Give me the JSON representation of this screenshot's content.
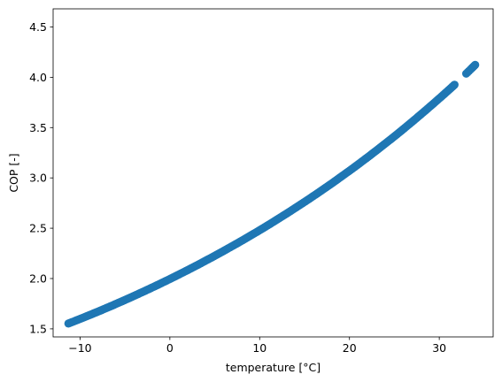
{
  "chart_data": {
    "type": "scatter",
    "title": "",
    "xlabel": "temperature [°C]",
    "ylabel": "COP [-]",
    "xlim": [
      -13.0,
      36.0
    ],
    "ylim": [
      1.42,
      4.68
    ],
    "xticks": [
      -10,
      0,
      10,
      20,
      30
    ],
    "yticks": [
      1.5,
      2.0,
      2.5,
      3.0,
      3.5,
      4.0,
      4.5
    ],
    "xtick_labels": [
      "−10",
      "0",
      "10",
      "20",
      "30"
    ],
    "ytick_labels": [
      "1.5",
      "2.0",
      "2.5",
      "3.0",
      "3.5",
      "4.0",
      "4.5"
    ],
    "grid": false,
    "marker_color": "#1f77b4",
    "series": [
      {
        "x": [
          -11.3,
          -10.8,
          -10.3,
          -9.8,
          -9.3,
          -8.8,
          -8.3,
          -7.8,
          -7.3,
          -6.8,
          -6.3,
          -5.8,
          -5.3,
          -4.8,
          -4.3,
          -3.8,
          -3.3,
          -2.8,
          -2.3,
          -1.8,
          -1.3,
          -0.8,
          -0.3,
          0.2,
          0.7,
          1.2,
          1.7,
          2.2,
          2.7,
          3.2,
          3.7,
          4.2,
          4.7,
          5.2,
          5.7,
          6.2,
          6.7,
          7.2,
          7.7,
          8.2,
          8.7,
          9.2,
          9.7,
          10.2,
          10.7,
          11.2,
          11.7,
          12.2,
          12.7,
          13.2,
          13.7,
          14.2,
          14.7,
          15.2,
          15.7,
          16.2,
          16.7,
          17.2,
          17.7,
          18.2,
          18.7,
          19.2,
          19.7,
          20.2,
          20.7,
          21.2,
          21.7,
          22.2,
          22.7,
          23.2,
          23.7,
          24.2,
          24.7,
          25.2,
          25.7,
          26.2,
          26.7,
          27.2,
          27.7,
          28.2,
          28.7,
          29.2,
          29.7,
          30.2,
          30.6,
          31.0,
          31.4,
          31.7,
          33.0,
          33.6,
          34.0
        ],
        "y": [
          1.553,
          1.57,
          1.588,
          1.606,
          1.624,
          1.642,
          1.661,
          1.679,
          1.698,
          1.717,
          1.736,
          1.756,
          1.775,
          1.795,
          1.815,
          1.835,
          1.856,
          1.876,
          1.897,
          1.918,
          1.939,
          1.961,
          1.982,
          2.004,
          2.026,
          2.049,
          2.071,
          2.094,
          2.117,
          2.14,
          2.164,
          2.188,
          2.211,
          2.236,
          2.26,
          2.285,
          2.31,
          2.335,
          2.36,
          2.386,
          2.412,
          2.438,
          2.464,
          2.491,
          2.518,
          2.545,
          2.573,
          2.601,
          2.629,
          2.657,
          2.686,
          2.715,
          2.744,
          2.773,
          2.803,
          2.833,
          2.863,
          2.894,
          2.925,
          2.956,
          2.988,
          3.02,
          3.052,
          3.084,
          3.117,
          3.15,
          3.184,
          3.217,
          3.252,
          3.286,
          3.321,
          3.356,
          3.391,
          3.427,
          3.463,
          3.5,
          3.537,
          3.574,
          3.612,
          3.65,
          3.688,
          3.727,
          3.766,
          3.805,
          3.837,
          3.869,
          3.901,
          3.926,
          4.036,
          4.088,
          4.123
        ]
      }
    ]
  }
}
